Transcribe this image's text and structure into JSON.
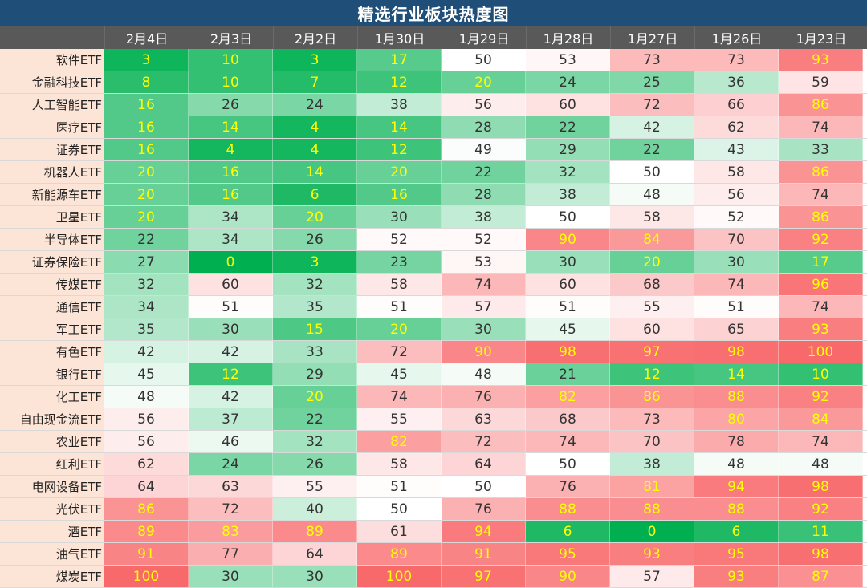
{
  "title": "精选行业板块热度图",
  "chart_data": {
    "type": "heatmap",
    "title": "精选行业板块热度图",
    "columns": [
      "2月4日",
      "2月3日",
      "2月2日",
      "1月30日",
      "1月29日",
      "1月28日",
      "1月27日",
      "1月26日",
      "1月23日"
    ],
    "rows": [
      {
        "label": "软件ETF",
        "values": [
          3,
          10,
          3,
          17,
          50,
          53,
          73,
          73,
          93
        ]
      },
      {
        "label": "金融科技ETF",
        "values": [
          8,
          10,
          7,
          12,
          20,
          24,
          25,
          36,
          59
        ]
      },
      {
        "label": "人工智能ETF",
        "values": [
          16,
          26,
          24,
          38,
          56,
          60,
          72,
          66,
          86
        ]
      },
      {
        "label": "医疗ETF",
        "values": [
          16,
          14,
          4,
          14,
          28,
          22,
          42,
          62,
          74
        ]
      },
      {
        "label": "证券ETF",
        "values": [
          16,
          4,
          4,
          12,
          49,
          29,
          22,
          43,
          33
        ]
      },
      {
        "label": "机器人ETF",
        "values": [
          20,
          16,
          14,
          20,
          22,
          32,
          50,
          58,
          86
        ]
      },
      {
        "label": "新能源车ETF",
        "values": [
          20,
          16,
          6,
          16,
          28,
          38,
          48,
          56,
          74
        ]
      },
      {
        "label": "卫星ETF",
        "values": [
          20,
          34,
          20,
          30,
          38,
          50,
          58,
          52,
          86
        ]
      },
      {
        "label": "半导体ETF",
        "values": [
          22,
          34,
          26,
          52,
          52,
          90,
          84,
          70,
          92
        ]
      },
      {
        "label": "证券保险ETF",
        "values": [
          27,
          0,
          3,
          23,
          53,
          30,
          20,
          30,
          17
        ]
      },
      {
        "label": "传媒ETF",
        "values": [
          32,
          60,
          32,
          58,
          74,
          60,
          68,
          74,
          96
        ]
      },
      {
        "label": "通信ETF",
        "values": [
          34,
          51,
          35,
          51,
          57,
          51,
          55,
          51,
          74
        ]
      },
      {
        "label": "军工ETF",
        "values": [
          35,
          30,
          15,
          20,
          30,
          45,
          60,
          65,
          93
        ]
      },
      {
        "label": "有色ETF",
        "values": [
          42,
          42,
          33,
          72,
          90,
          98,
          97,
          98,
          100
        ]
      },
      {
        "label": "银行ETF",
        "values": [
          45,
          12,
          29,
          45,
          48,
          21,
          12,
          14,
          10
        ]
      },
      {
        "label": "化工ETF",
        "values": [
          48,
          42,
          20,
          74,
          76,
          82,
          86,
          88,
          92
        ]
      },
      {
        "label": "自由现金流ETF",
        "values": [
          56,
          37,
          22,
          55,
          63,
          68,
          73,
          80,
          84
        ]
      },
      {
        "label": "农业ETF",
        "values": [
          56,
          46,
          32,
          82,
          72,
          74,
          70,
          78,
          74
        ]
      },
      {
        "label": "红利ETF",
        "values": [
          62,
          24,
          26,
          58,
          64,
          50,
          38,
          48,
          48
        ]
      },
      {
        "label": "电网设备ETF",
        "values": [
          64,
          63,
          55,
          51,
          50,
          76,
          81,
          94,
          98
        ]
      },
      {
        "label": "光伏ETF",
        "values": [
          86,
          72,
          40,
          50,
          76,
          88,
          88,
          88,
          92
        ]
      },
      {
        "label": "酒ETF",
        "values": [
          89,
          83,
          89,
          61,
          94,
          6,
          0,
          6,
          11
        ]
      },
      {
        "label": "油气ETF",
        "values": [
          91,
          77,
          64,
          89,
          91,
          95,
          93,
          95,
          98
        ]
      },
      {
        "label": "煤炭ETF",
        "values": [
          100,
          30,
          30,
          100,
          97,
          90,
          57,
          93,
          87
        ]
      }
    ],
    "color_scale": {
      "low": "#00b050",
      "mid": "#ffffff",
      "high": "#f8696b",
      "min": 0,
      "max": 100
    },
    "text_colors": {
      "normal": "#333333",
      "extreme": "#ffff00"
    },
    "legend": "none",
    "grid": true
  }
}
